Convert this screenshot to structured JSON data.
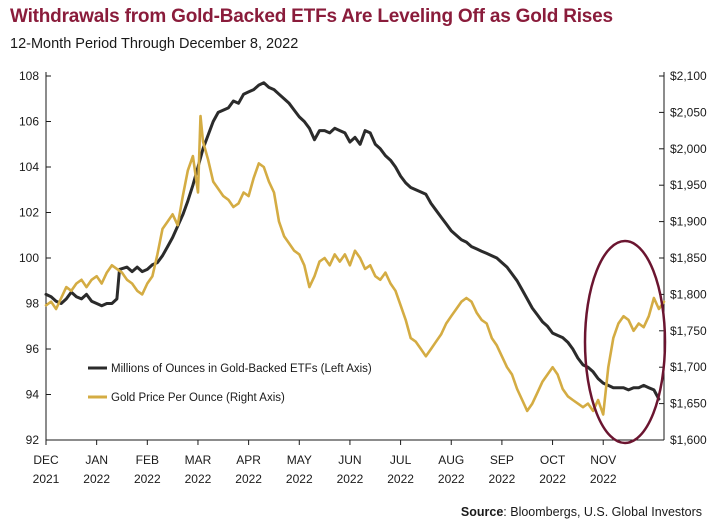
{
  "header": {
    "title": "Withdrawals from Gold-Backed ETFs Are Leveling Off as Gold Rises",
    "subtitle": "12-Month Period Through December 8, 2022"
  },
  "footer": {
    "source_label": "Source",
    "source_text": ": Bloombergs, U.S. Global Investors"
  },
  "colors": {
    "etf": "#2b2b2b",
    "gold": "#d4ac43",
    "circle": "#6b1530",
    "title": "#8a1c3b"
  },
  "chart_data": {
    "type": "line",
    "grid": false,
    "legend_position": "lower-left",
    "x_ticks": [
      {
        "month": "DEC",
        "year": "2021",
        "x": 0
      },
      {
        "month": "JAN",
        "year": "2022",
        "x": 1
      },
      {
        "month": "FEB",
        "year": "2022",
        "x": 2
      },
      {
        "month": "MAR",
        "year": "2022",
        "x": 3
      },
      {
        "month": "APR",
        "year": "2022",
        "x": 4
      },
      {
        "month": "MAY",
        "year": "2022",
        "x": 5
      },
      {
        "month": "JUN",
        "year": "2022",
        "x": 6
      },
      {
        "month": "JUL",
        "year": "2022",
        "x": 7
      },
      {
        "month": "AUG",
        "year": "2022",
        "x": 8
      },
      {
        "month": "SEP",
        "year": "2022",
        "x": 9
      },
      {
        "month": "OCT",
        "year": "2022",
        "x": 10
      },
      {
        "month": "NOV",
        "year": "2022",
        "x": 11
      }
    ],
    "x_range": [
      0,
      12.2
    ],
    "left_axis": {
      "ylim": [
        92,
        108
      ],
      "ticks": [
        "92",
        "94",
        "96",
        "98",
        "100",
        "102",
        "104",
        "106",
        "108"
      ]
    },
    "right_axis": {
      "ylim": [
        1600,
        2100
      ],
      "ticks": [
        "$1,600",
        "$1,650",
        "$1,700",
        "$1,750",
        "$1,800",
        "$1,850",
        "$1,900",
        "$1,950",
        "$2,000",
        "$2,050",
        "$2,100"
      ]
    },
    "series": [
      {
        "name": "Millions of Ounces in Gold-Backed ETFs (Left Axis)",
        "axis": "left",
        "color": "#2b2b2b",
        "points": [
          [
            0.0,
            98.4
          ],
          [
            0.1,
            98.3
          ],
          [
            0.2,
            98.1
          ],
          [
            0.3,
            98.0
          ],
          [
            0.4,
            98.2
          ],
          [
            0.5,
            98.5
          ],
          [
            0.6,
            98.3
          ],
          [
            0.7,
            98.2
          ],
          [
            0.8,
            98.4
          ],
          [
            0.9,
            98.1
          ],
          [
            1.0,
            98.0
          ],
          [
            1.1,
            97.9
          ],
          [
            1.2,
            98.0
          ],
          [
            1.3,
            98.0
          ],
          [
            1.4,
            98.2
          ],
          [
            1.45,
            99.5
          ],
          [
            1.6,
            99.6
          ],
          [
            1.7,
            99.4
          ],
          [
            1.8,
            99.6
          ],
          [
            1.9,
            99.4
          ],
          [
            2.0,
            99.5
          ],
          [
            2.1,
            99.7
          ],
          [
            2.2,
            99.8
          ],
          [
            2.3,
            100.1
          ],
          [
            2.4,
            100.5
          ],
          [
            2.5,
            100.9
          ],
          [
            2.6,
            101.4
          ],
          [
            2.7,
            101.9
          ],
          [
            2.8,
            102.5
          ],
          [
            2.9,
            103.2
          ],
          [
            3.0,
            104.0
          ],
          [
            3.1,
            104.8
          ],
          [
            3.2,
            105.4
          ],
          [
            3.3,
            106.0
          ],
          [
            3.4,
            106.4
          ],
          [
            3.5,
            106.5
          ],
          [
            3.6,
            106.6
          ],
          [
            3.7,
            106.9
          ],
          [
            3.8,
            106.8
          ],
          [
            3.9,
            107.2
          ],
          [
            4.0,
            107.3
          ],
          [
            4.1,
            107.4
          ],
          [
            4.2,
            107.6
          ],
          [
            4.3,
            107.7
          ],
          [
            4.4,
            107.5
          ],
          [
            4.5,
            107.4
          ],
          [
            4.6,
            107.2
          ],
          [
            4.7,
            107.0
          ],
          [
            4.8,
            106.8
          ],
          [
            4.9,
            106.5
          ],
          [
            5.0,
            106.2
          ],
          [
            5.1,
            106.0
          ],
          [
            5.2,
            105.7
          ],
          [
            5.3,
            105.2
          ],
          [
            5.4,
            105.6
          ],
          [
            5.5,
            105.6
          ],
          [
            5.6,
            105.5
          ],
          [
            5.7,
            105.7
          ],
          [
            5.8,
            105.6
          ],
          [
            5.9,
            105.5
          ],
          [
            6.0,
            105.1
          ],
          [
            6.1,
            105.3
          ],
          [
            6.2,
            105.0
          ],
          [
            6.3,
            105.6
          ],
          [
            6.4,
            105.5
          ],
          [
            6.5,
            105.0
          ],
          [
            6.6,
            104.8
          ],
          [
            6.7,
            104.5
          ],
          [
            6.8,
            104.3
          ],
          [
            6.9,
            104.0
          ],
          [
            7.0,
            103.6
          ],
          [
            7.1,
            103.3
          ],
          [
            7.2,
            103.1
          ],
          [
            7.3,
            103.0
          ],
          [
            7.4,
            102.9
          ],
          [
            7.5,
            102.8
          ],
          [
            7.6,
            102.4
          ],
          [
            7.7,
            102.1
          ],
          [
            7.8,
            101.8
          ],
          [
            7.9,
            101.5
          ],
          [
            8.0,
            101.2
          ],
          [
            8.1,
            101.0
          ],
          [
            8.2,
            100.8
          ],
          [
            8.3,
            100.7
          ],
          [
            8.4,
            100.5
          ],
          [
            8.5,
            100.4
          ],
          [
            8.6,
            100.3
          ],
          [
            8.7,
            100.2
          ],
          [
            8.8,
            100.1
          ],
          [
            8.9,
            100.0
          ],
          [
            9.0,
            99.8
          ],
          [
            9.1,
            99.6
          ],
          [
            9.2,
            99.3
          ],
          [
            9.3,
            99.0
          ],
          [
            9.4,
            98.6
          ],
          [
            9.5,
            98.2
          ],
          [
            9.6,
            97.8
          ],
          [
            9.7,
            97.5
          ],
          [
            9.8,
            97.2
          ],
          [
            9.9,
            97.0
          ],
          [
            10.0,
            96.7
          ],
          [
            10.1,
            96.6
          ],
          [
            10.2,
            96.5
          ],
          [
            10.3,
            96.3
          ],
          [
            10.4,
            96.0
          ],
          [
            10.5,
            95.6
          ],
          [
            10.6,
            95.3
          ],
          [
            10.7,
            95.2
          ],
          [
            10.8,
            95.0
          ],
          [
            10.9,
            94.7
          ],
          [
            11.0,
            94.5
          ],
          [
            11.1,
            94.4
          ],
          [
            11.2,
            94.3
          ],
          [
            11.3,
            94.3
          ],
          [
            11.4,
            94.3
          ],
          [
            11.5,
            94.2
          ],
          [
            11.6,
            94.3
          ],
          [
            11.7,
            94.3
          ],
          [
            11.8,
            94.4
          ],
          [
            11.9,
            94.3
          ],
          [
            12.0,
            94.2
          ],
          [
            12.1,
            93.8
          ]
        ]
      },
      {
        "name": "Gold Price Per Ounce (Right Axis)",
        "axis": "right",
        "color": "#d4ac43",
        "points": [
          [
            0.0,
            1785
          ],
          [
            0.1,
            1790
          ],
          [
            0.2,
            1780
          ],
          [
            0.3,
            1795
          ],
          [
            0.4,
            1810
          ],
          [
            0.5,
            1805
          ],
          [
            0.6,
            1815
          ],
          [
            0.7,
            1820
          ],
          [
            0.8,
            1810
          ],
          [
            0.9,
            1820
          ],
          [
            1.0,
            1825
          ],
          [
            1.1,
            1815
          ],
          [
            1.2,
            1830
          ],
          [
            1.3,
            1840
          ],
          [
            1.4,
            1835
          ],
          [
            1.5,
            1830
          ],
          [
            1.6,
            1820
          ],
          [
            1.7,
            1815
          ],
          [
            1.8,
            1805
          ],
          [
            1.9,
            1800
          ],
          [
            2.0,
            1815
          ],
          [
            2.1,
            1825
          ],
          [
            2.2,
            1855
          ],
          [
            2.3,
            1890
          ],
          [
            2.4,
            1900
          ],
          [
            2.5,
            1910
          ],
          [
            2.6,
            1895
          ],
          [
            2.7,
            1935
          ],
          [
            2.8,
            1970
          ],
          [
            2.9,
            1990
          ],
          [
            3.0,
            1940
          ],
          [
            3.05,
            2045
          ],
          [
            3.1,
            2010
          ],
          [
            3.2,
            1985
          ],
          [
            3.3,
            1955
          ],
          [
            3.4,
            1945
          ],
          [
            3.5,
            1935
          ],
          [
            3.6,
            1930
          ],
          [
            3.7,
            1920
          ],
          [
            3.8,
            1925
          ],
          [
            3.9,
            1940
          ],
          [
            4.0,
            1935
          ],
          [
            4.1,
            1960
          ],
          [
            4.2,
            1980
          ],
          [
            4.3,
            1975
          ],
          [
            4.4,
            1955
          ],
          [
            4.5,
            1940
          ],
          [
            4.6,
            1900
          ],
          [
            4.7,
            1880
          ],
          [
            4.8,
            1870
          ],
          [
            4.9,
            1860
          ],
          [
            5.0,
            1855
          ],
          [
            5.1,
            1840
          ],
          [
            5.2,
            1810
          ],
          [
            5.3,
            1825
          ],
          [
            5.4,
            1845
          ],
          [
            5.5,
            1850
          ],
          [
            5.6,
            1840
          ],
          [
            5.7,
            1855
          ],
          [
            5.8,
            1845
          ],
          [
            5.9,
            1855
          ],
          [
            6.0,
            1840
          ],
          [
            6.1,
            1860
          ],
          [
            6.2,
            1850
          ],
          [
            6.3,
            1835
          ],
          [
            6.4,
            1840
          ],
          [
            6.5,
            1825
          ],
          [
            6.6,
            1820
          ],
          [
            6.7,
            1830
          ],
          [
            6.8,
            1815
          ],
          [
            6.9,
            1805
          ],
          [
            7.0,
            1785
          ],
          [
            7.1,
            1765
          ],
          [
            7.2,
            1740
          ],
          [
            7.3,
            1735
          ],
          [
            7.4,
            1725
          ],
          [
            7.5,
            1715
          ],
          [
            7.6,
            1725
          ],
          [
            7.7,
            1735
          ],
          [
            7.8,
            1745
          ],
          [
            7.9,
            1760
          ],
          [
            8.0,
            1770
          ],
          [
            8.1,
            1780
          ],
          [
            8.2,
            1790
          ],
          [
            8.3,
            1795
          ],
          [
            8.4,
            1790
          ],
          [
            8.5,
            1775
          ],
          [
            8.6,
            1765
          ],
          [
            8.7,
            1760
          ],
          [
            8.8,
            1740
          ],
          [
            8.9,
            1730
          ],
          [
            9.0,
            1715
          ],
          [
            9.1,
            1700
          ],
          [
            9.2,
            1690
          ],
          [
            9.3,
            1670
          ],
          [
            9.4,
            1655
          ],
          [
            9.5,
            1640
          ],
          [
            9.6,
            1650
          ],
          [
            9.7,
            1665
          ],
          [
            9.8,
            1680
          ],
          [
            9.9,
            1690
          ],
          [
            10.0,
            1700
          ],
          [
            10.1,
            1690
          ],
          [
            10.2,
            1670
          ],
          [
            10.3,
            1660
          ],
          [
            10.4,
            1655
          ],
          [
            10.5,
            1650
          ],
          [
            10.6,
            1645
          ],
          [
            10.7,
            1650
          ],
          [
            10.8,
            1640
          ],
          [
            10.9,
            1655
          ],
          [
            11.0,
            1635
          ],
          [
            11.1,
            1700
          ],
          [
            11.2,
            1740
          ],
          [
            11.3,
            1760
          ],
          [
            11.4,
            1770
          ],
          [
            11.5,
            1765
          ],
          [
            11.6,
            1750
          ],
          [
            11.7,
            1760
          ],
          [
            11.8,
            1755
          ],
          [
            11.9,
            1770
          ],
          [
            12.0,
            1795
          ],
          [
            12.1,
            1780
          ],
          [
            12.2,
            1790
          ]
        ]
      }
    ]
  }
}
